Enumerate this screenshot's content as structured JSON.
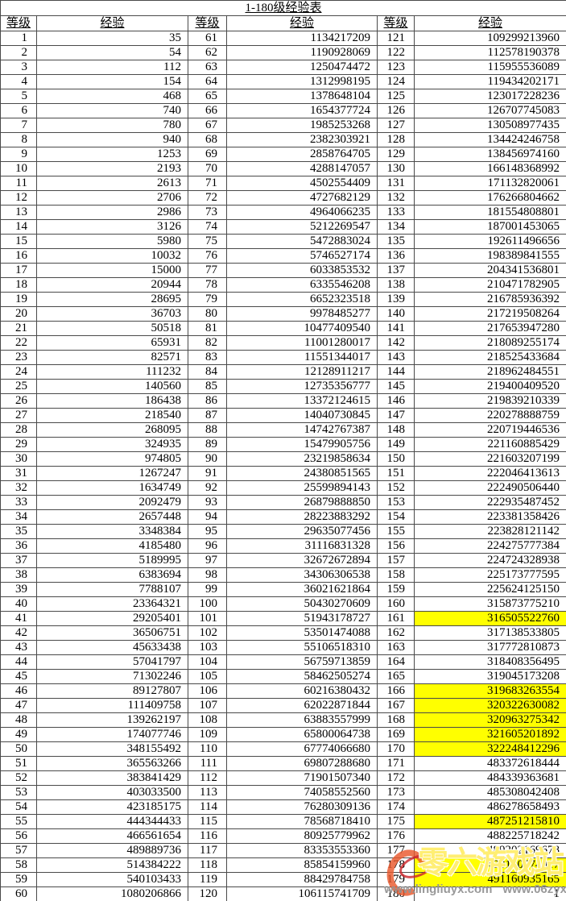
{
  "title": "1-180级经验表",
  "table": {
    "level_header": "等级",
    "exp_header": "经验",
    "highlight_color": "#ffff00",
    "highlighted_levels": [
      161,
      166,
      167,
      168,
      169,
      170,
      175,
      178,
      179
    ],
    "rows": [
      [
        1,
        "35",
        61,
        "1134217209",
        121,
        "109299213960"
      ],
      [
        2,
        "54",
        62,
        "1190928069",
        122,
        "112578190378"
      ],
      [
        3,
        "112",
        63,
        "1250474472",
        123,
        "115955536089"
      ],
      [
        4,
        "154",
        64,
        "1312998195",
        124,
        "119434202171"
      ],
      [
        5,
        "468",
        65,
        "1378648104",
        125,
        "123017228236"
      ],
      [
        6,
        "740",
        66,
        "1654377724",
        126,
        "126707745083"
      ],
      [
        7,
        "780",
        67,
        "1985253268",
        127,
        "130508977435"
      ],
      [
        8,
        "940",
        68,
        "2382303921",
        128,
        "134424246758"
      ],
      [
        9,
        "1253",
        69,
        "2858764705",
        129,
        "138456974160"
      ],
      [
        10,
        "2193",
        70,
        "4288147057",
        130,
        "166148368992"
      ],
      [
        11,
        "2613",
        71,
        "4502554409",
        131,
        "171132820061"
      ],
      [
        12,
        "2706",
        72,
        "4727682129",
        132,
        "176266804662"
      ],
      [
        13,
        "2986",
        73,
        "4964066235",
        133,
        "181554808801"
      ],
      [
        14,
        "3126",
        74,
        "5212269547",
        134,
        "187001453065"
      ],
      [
        15,
        "5980",
        75,
        "5472883024",
        135,
        "192611496656"
      ],
      [
        16,
        "10032",
        76,
        "5746527174",
        136,
        "198389841555"
      ],
      [
        17,
        "15000",
        77,
        "6033853532",
        137,
        "204341536801"
      ],
      [
        18,
        "20944",
        78,
        "6335546208",
        138,
        "210471782905"
      ],
      [
        19,
        "28695",
        79,
        "6652323518",
        139,
        "216785936392"
      ],
      [
        20,
        "36703",
        80,
        "9978485277",
        140,
        "217219508264"
      ],
      [
        21,
        "50518",
        81,
        "10477409540",
        141,
        "217653947280"
      ],
      [
        22,
        "65931",
        82,
        "11001280017",
        142,
        "218089255174"
      ],
      [
        23,
        "82571",
        83,
        "11551344017",
        143,
        "218525433684"
      ],
      [
        24,
        "111232",
        84,
        "12128911217",
        144,
        "218962484551"
      ],
      [
        25,
        "140560",
        85,
        "12735356777",
        145,
        "219400409520"
      ],
      [
        26,
        "186438",
        86,
        "13372124615",
        146,
        "219839210339"
      ],
      [
        27,
        "218540",
        87,
        "14040730845",
        147,
        "220278888759"
      ],
      [
        28,
        "268095",
        88,
        "14742767387",
        148,
        "220719446536"
      ],
      [
        29,
        "324935",
        89,
        "15479905756",
        149,
        "221160885429"
      ],
      [
        30,
        "974805",
        90,
        "23219858634",
        150,
        "221603207199"
      ],
      [
        31,
        "1267247",
        91,
        "24380851565",
        151,
        "222046413613"
      ],
      [
        32,
        "1634749",
        92,
        "25599894143",
        152,
        "222490506440"
      ],
      [
        33,
        "2092479",
        93,
        "26879888850",
        153,
        "222935487452"
      ],
      [
        34,
        "2657448",
        94,
        "28223883292",
        154,
        "223381358426"
      ],
      [
        35,
        "3348384",
        95,
        "29635077456",
        155,
        "223828121142"
      ],
      [
        36,
        "4185480",
        96,
        "31116831328",
        156,
        "224275777384"
      ],
      [
        37,
        "5189995",
        97,
        "32672672894",
        157,
        "224724328938"
      ],
      [
        38,
        "6383694",
        98,
        "34306306538",
        158,
        "225173777595"
      ],
      [
        39,
        "7788107",
        99,
        "36021621864",
        159,
        "225624125150"
      ],
      [
        40,
        "23364321",
        100,
        "50430270609",
        160,
        "315873775210"
      ],
      [
        41,
        "29205401",
        101,
        "51943178727",
        161,
        "316505522760"
      ],
      [
        42,
        "36506751",
        102,
        "53501474088",
        162,
        "317138533805"
      ],
      [
        43,
        "45633438",
        103,
        "55106518310",
        163,
        "317772810873"
      ],
      [
        44,
        "57041797",
        104,
        "56759713859",
        164,
        "318408356495"
      ],
      [
        45,
        "71302246",
        105,
        "58462505274",
        165,
        "319045173208"
      ],
      [
        46,
        "89127807",
        106,
        "60216380432",
        166,
        "319683263554"
      ],
      [
        47,
        "111409758",
        107,
        "62022871844",
        167,
        "320322630082"
      ],
      [
        48,
        "139262197",
        108,
        "63883557999",
        168,
        "320963275342"
      ],
      [
        49,
        "174077746",
        109,
        "65800064738",
        169,
        "321605201892"
      ],
      [
        50,
        "348155492",
        110,
        "67774066680",
        170,
        "322248412296"
      ],
      [
        51,
        "365563266",
        111,
        "69807288680",
        171,
        "483372618444"
      ],
      [
        52,
        "383841429",
        112,
        "71901507340",
        172,
        "484339363681"
      ],
      [
        53,
        "403033500",
        113,
        "74058552560",
        173,
        "485308042408"
      ],
      [
        54,
        "423185175",
        114,
        "76280309136",
        174,
        "486278658493"
      ],
      [
        55,
        "444344433",
        115,
        "78568718410",
        175,
        "487251215810"
      ],
      [
        56,
        "466561654",
        116,
        "80925779962",
        176,
        "488225718242"
      ],
      [
        57,
        "489889736",
        117,
        "83353553360",
        177,
        "489202169678"
      ],
      [
        58,
        "514384222",
        118,
        "85854159960",
        178,
        "490180574017"
      ],
      [
        59,
        "540103433",
        119,
        "88429784758",
        179,
        "491160935165"
      ],
      [
        60,
        "1080206866",
        120,
        "106115741709",
        180,
        "1"
      ]
    ]
  },
  "watermark": {
    "logo_icon": "flame-c-logo",
    "brand_text": "零六游戏站",
    "url1": "www.lingliuyx.com",
    "url2": "www.06zyx.com"
  }
}
